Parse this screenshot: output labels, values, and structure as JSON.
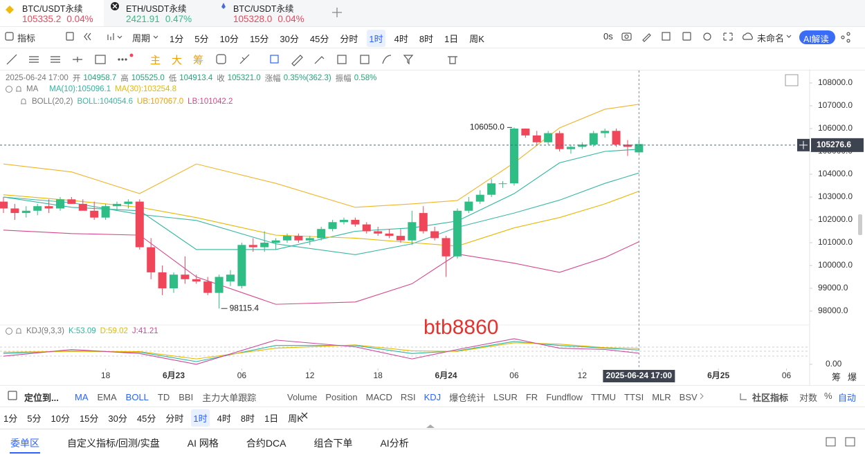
{
  "tabs": [
    {
      "symbol": "BTC/USDT永续",
      "price": "105335.2",
      "change": "0.04%"
    },
    {
      "symbol": "ETH/USDT永续",
      "price": "2421.91",
      "change": "0.47%"
    },
    {
      "symbol": "BTC/USDT永续",
      "price": "105328.0",
      "change": "0.04%"
    }
  ],
  "toolbar": {
    "indicators": "指标",
    "period": "周期",
    "intervals": [
      "1分",
      "5分",
      "10分",
      "15分",
      "30分",
      "45分",
      "分时",
      "1时",
      "4时",
      "8时",
      "1日",
      "周K"
    ],
    "timer": "0s",
    "layout_name": "未命名",
    "ai": "AI解读"
  },
  "drawing_tools": [
    "主",
    "大",
    "筹"
  ],
  "info": {
    "datetime": "2025-06-24 17:00",
    "open_label": "开",
    "open": "104958.7",
    "high_label": "高",
    "high": "105525.0",
    "low_label": "低",
    "low": "104913.4",
    "close_label": "收",
    "close": "105321.0",
    "change_label": "涨幅",
    "change": "0.35%(362.3)",
    "amplitude_label": "振幅",
    "amplitude": "0.58%"
  },
  "ma_legend": {
    "name": "MA",
    "ma10": "MA(10):105096.1",
    "ma30": "MA(30):103254.8"
  },
  "boll_legend": {
    "name": "BOLL(20,2)",
    "boll": "BOLL:104054.6",
    "ub": "UB:107067.0",
    "lb": "LB:101042.2"
  },
  "kdj_legend": {
    "name": "KDJ(9,3,3)",
    "k": "K:53.09",
    "d": "D:59.02",
    "j": "J:41.21"
  },
  "watermark": "btb8860",
  "chart_data": {
    "type": "candlestick",
    "categories": [
      null,
      null,
      null,
      null,
      null,
      null,
      null,
      null,
      null,
      null,
      null,
      null,
      null,
      null,
      null,
      null,
      null,
      null,
      null,
      null,
      null,
      null,
      null,
      null,
      null,
      null,
      null,
      null,
      null,
      null,
      null,
      null,
      null,
      null,
      null,
      null,
      null,
      null,
      null,
      null,
      null,
      null,
      null,
      null,
      null,
      null,
      null,
      null,
      null,
      null,
      null,
      null,
      null,
      null,
      null,
      null,
      null
    ],
    "candles": [
      [
        102800,
        103000,
        102300,
        102500
      ],
      [
        102500,
        102700,
        102000,
        102300
      ],
      [
        102300,
        102600,
        102100,
        102400
      ],
      [
        102400,
        102700,
        102200,
        102600
      ],
      [
        102600,
        102900,
        102300,
        102500
      ],
      [
        102500,
        103000,
        102400,
        102900
      ],
      [
        102900,
        103000,
        102700,
        102700
      ],
      [
        102700,
        102900,
        102500,
        102400
      ],
      [
        102400,
        102800,
        102000,
        102100
      ],
      [
        102100,
        102700,
        102000,
        102600
      ],
      [
        102600,
        102800,
        102400,
        102700
      ],
      [
        102700,
        102900,
        102500,
        102800
      ],
      [
        102800,
        102900,
        100700,
        100800
      ],
      [
        100800,
        101200,
        99400,
        99700
      ],
      [
        99700,
        100000,
        98700,
        99000
      ],
      [
        99000,
        99700,
        98800,
        99600
      ],
      [
        99600,
        100400,
        99200,
        99400
      ],
      [
        99400,
        99600,
        99200,
        99300
      ],
      [
        99300,
        99500,
        98700,
        98800
      ],
      [
        98800,
        99600,
        98115.4,
        99500
      ],
      [
        99300,
        99800,
        99100,
        99600
      ],
      [
        99100,
        101000,
        99000,
        100900
      ],
      [
        100900,
        101200,
        100600,
        100800
      ],
      [
        100800,
        101500,
        100600,
        101000
      ],
      [
        101000,
        101200,
        100700,
        101100
      ],
      [
        101100,
        101400,
        101000,
        101300
      ],
      [
        101300,
        101400,
        101000,
        101100
      ],
      [
        101100,
        101300,
        100900,
        101200
      ],
      [
        101200,
        101700,
        101100,
        101600
      ],
      [
        101600,
        102000,
        101500,
        101900
      ],
      [
        101900,
        102100,
        101800,
        102000
      ],
      [
        102000,
        102100,
        101700,
        101800
      ],
      [
        101800,
        101900,
        101400,
        101500
      ],
      [
        101500,
        101700,
        101300,
        101400
      ],
      [
        101400,
        101600,
        101200,
        101300
      ],
      [
        101300,
        101600,
        101000,
        101100
      ],
      [
        101100,
        102400,
        100900,
        101900
      ],
      [
        102300,
        102600,
        101400,
        101500
      ],
      [
        101500,
        101700,
        101100,
        101200
      ],
      [
        101200,
        101300,
        99500,
        100400
      ],
      [
        100400,
        102500,
        100300,
        102400
      ],
      [
        102400,
        103000,
        102300,
        102800
      ],
      [
        102800,
        103300,
        102700,
        103100
      ],
      [
        103100,
        103800,
        103000,
        103600
      ],
      [
        103600,
        103700,
        103400,
        103600
      ],
      [
        103600,
        106050,
        103500,
        106000
      ],
      [
        106000,
        106000,
        105600,
        105700
      ],
      [
        105700,
        105900,
        105300,
        105400
      ],
      [
        105400,
        105900,
        105300,
        105800
      ],
      [
        105800,
        105900,
        105000,
        105100
      ],
      [
        105100,
        105300,
        104900,
        105200
      ],
      [
        105200,
        105400,
        105100,
        105300
      ],
      [
        105300,
        105900,
        105200,
        105800
      ],
      [
        105800,
        106000,
        105600,
        105900
      ],
      [
        105900,
        106000,
        105200,
        105300
      ],
      [
        105300,
        105500,
        104800,
        105200
      ],
      [
        104958.7,
        105525,
        104913.4,
        105321
      ]
    ],
    "up_color": "#2ebd85",
    "down_color": "#f0465a",
    "lines": [
      {
        "name": "UB",
        "color": "#f0b429",
        "x": [
          0,
          6,
          12,
          17,
          24,
          31,
          36,
          40,
          45,
          49,
          53,
          56
        ],
        "values": [
          104450,
          104100,
          103150,
          104450,
          103600,
          102550,
          102700,
          102850,
          104500,
          106030,
          106850,
          107067
        ]
      },
      {
        "name": "BOLL",
        "color": "#3ab7a5",
        "x": [
          0,
          6,
          12,
          17,
          24,
          31,
          36,
          40,
          45,
          49,
          53,
          56
        ],
        "values": [
          103000,
          102750,
          102240,
          101975,
          100950,
          100475,
          100950,
          101675,
          102300,
          102865,
          103600,
          104054.6
        ]
      },
      {
        "name": "LB",
        "color": "#d6478c",
        "x": [
          0,
          6,
          12,
          17,
          24,
          31,
          36,
          40,
          45,
          49,
          53,
          56
        ],
        "values": [
          101550,
          101400,
          101330,
          99500,
          98300,
          98400,
          99200,
          100500,
          100100,
          99700,
          100350,
          101042.2
        ]
      },
      {
        "name": "MA10",
        "color": "#2bb6a0",
        "x": [
          0,
          6,
          12,
          17,
          24,
          31,
          36,
          40,
          45,
          49,
          53,
          56
        ],
        "values": [
          103000,
          102550,
          102400,
          100700,
          100700,
          101500,
          101650,
          101950,
          103150,
          104500,
          105000,
          105096.1
        ]
      },
      {
        "name": "MA30",
        "color": "#e6b800",
        "x": [
          0,
          6,
          12,
          17,
          24,
          31,
          36,
          40,
          45,
          49,
          53,
          56
        ],
        "values": [
          103100,
          102850,
          102550,
          102100,
          101330,
          101200,
          101000,
          100850,
          101650,
          102100,
          102700,
          103254.8
        ]
      }
    ],
    "xlim": [
      -0.305,
      71.04
    ],
    "xticks": [
      {
        "value": 9,
        "label": "18"
      },
      {
        "value": 15,
        "label": "6月23"
      },
      {
        "value": 21,
        "label": "06"
      },
      {
        "value": 27,
        "label": "12"
      },
      {
        "value": 33,
        "label": "18"
      },
      {
        "value": 39,
        "label": "6月24"
      },
      {
        "value": 45,
        "label": "06"
      },
      {
        "value": 51,
        "label": "12"
      },
      {
        "value": 63,
        "label": "6月25"
      },
      {
        "value": 69,
        "label": "06"
      }
    ],
    "ylim": [
      97455,
      108545
    ],
    "yticks": [
      {
        "value": 98000,
        "label": "98000.0"
      },
      {
        "value": 99000,
        "label": "99000.0"
      },
      {
        "value": 100000,
        "label": "100000.0"
      },
      {
        "value": 101000,
        "label": "101000.0"
      },
      {
        "value": 102000,
        "label": "102000.0"
      },
      {
        "value": 103000,
        "label": "103000.0"
      },
      {
        "value": 104000,
        "label": "104000.0"
      },
      {
        "value": 105000,
        "label": "105000.0"
      },
      {
        "value": 106000,
        "label": "106000.0"
      },
      {
        "value": 107000,
        "label": "107000.0"
      },
      {
        "value": 108000,
        "label": "108000.0"
      }
    ],
    "grid": false,
    "current_price": 105276.6,
    "crosshair": {
      "value": 56,
      "label": "2025-06-24 17:00"
    },
    "annotations": [
      {
        "value": 106050,
        "label": "106050.0"
      },
      {
        "value": 98115.4,
        "label": "98115.4"
      }
    ],
    "kdj": {
      "ylim": [
        -8,
        100
      ],
      "yticks": [
        {
          "value": 0,
          "label": "0.00"
        }
      ],
      "lines": [
        {
          "name": "K",
          "color": "#2bb6a0",
          "x": [
            0,
            6,
            12,
            17,
            24,
            31,
            36,
            40,
            45,
            49,
            53,
            56
          ],
          "values": [
            40,
            50,
            45,
            10,
            70,
            70,
            40,
            50,
            85,
            70,
            60,
            53.09
          ]
        },
        {
          "name": "D",
          "color": "#e6b800",
          "x": [
            0,
            6,
            12,
            17,
            24,
            31,
            36,
            40,
            45,
            49,
            53,
            56
          ],
          "values": [
            45,
            48,
            47,
            20,
            60,
            72,
            50,
            48,
            80,
            75,
            62,
            59.02
          ]
        },
        {
          "name": "J",
          "color": "#c9489a",
          "x": [
            0,
            6,
            12,
            17,
            24,
            31,
            36,
            40,
            45,
            49,
            53,
            56
          ],
          "values": [
            30,
            55,
            40,
            0,
            90,
            65,
            20,
            55,
            95,
            60,
            55,
            41.21
          ]
        }
      ]
    }
  },
  "axis_side": [
    "筹",
    "爆"
  ],
  "indicator_bar": {
    "locate": "定位到...",
    "main": [
      "MA",
      "EMA",
      "BOLL",
      "TD",
      "BBI",
      "主力大单跟踪"
    ],
    "sub": [
      "Volume",
      "Position",
      "MACD",
      "RSI",
      "KDJ",
      "爆仓统计",
      "LSUR",
      "FR",
      "Fundflow",
      "TTMU",
      "TTSI",
      "MLR",
      "BSV"
    ],
    "community": "社区指标",
    "log": "对数",
    "percent": "%",
    "auto": "自动"
  },
  "bottom_intervals": [
    "1分",
    "5分",
    "10分",
    "15分",
    "30分",
    "45分",
    "分时",
    "1时",
    "4时",
    "8时",
    "1日",
    "周K"
  ],
  "bottom_tabs": [
    "委单区",
    "自定义指标/回测/实盘",
    "AI 网格",
    "合约DCA",
    "组合下单",
    "AI分析"
  ]
}
